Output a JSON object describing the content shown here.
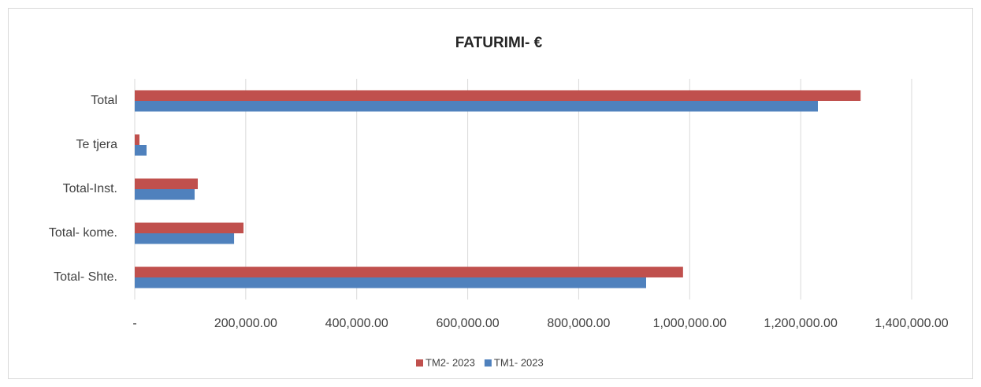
{
  "chart_data": {
    "type": "hbar",
    "title": "FATURIMI- €",
    "categories": [
      "Total- Shte.",
      "Total- kome.",
      "Total-Inst.",
      "Te tjera",
      "Total"
    ],
    "series": [
      {
        "name": "TM2- 2023",
        "color": "#c0504d",
        "values": [
          988000,
          196000,
          113600,
          8500,
          1308000
        ]
      },
      {
        "name": "TM1- 2023",
        "color": "#4f81bd",
        "values": [
          921500,
          179000,
          107900,
          21300,
          1231000
        ]
      }
    ],
    "xlim": [
      0,
      1400000
    ],
    "xticks": [
      {
        "value": 0,
        "label": "-"
      },
      {
        "value": 200000,
        "label": "200,000.00"
      },
      {
        "value": 400000,
        "label": "400,000.00"
      },
      {
        "value": 600000,
        "label": "600,000.00"
      },
      {
        "value": 800000,
        "label": "800,000.00"
      },
      {
        "value": 1000000,
        "label": "1,000,000.00"
      },
      {
        "value": 1200000,
        "label": "1,200,000.00"
      },
      {
        "value": 1400000,
        "label": "1,400,000.00"
      }
    ],
    "grid": true,
    "legend": "bottom"
  }
}
